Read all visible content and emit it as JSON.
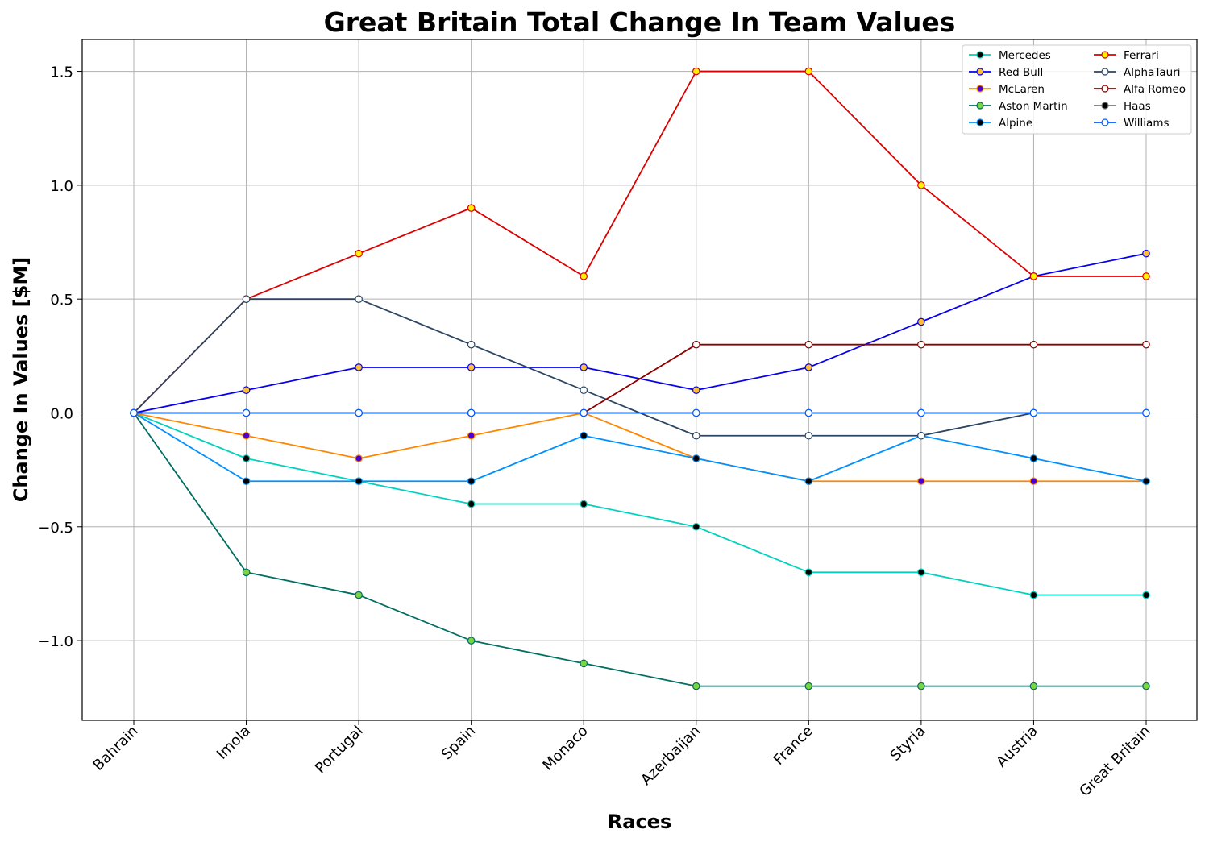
{
  "chart_data": {
    "type": "line",
    "title": "Great Britain Total Change In Team Values",
    "xlabel": "Races",
    "ylabel": "Change In Values [$M]",
    "categories": [
      "Bahrain",
      "Imola",
      "Portugal",
      "Spain",
      "Monaco",
      "Azerbaijan",
      "France",
      "Styria",
      "Austria",
      "Great Britain"
    ],
    "ylim": [
      -1.35,
      1.64
    ],
    "yticks": [
      -1.0,
      -0.5,
      0.0,
      0.5,
      1.0,
      1.5
    ],
    "ytick_labels": [
      "−1.0",
      "−0.5",
      "0.0",
      "0.5",
      "1.0",
      "1.5"
    ],
    "grid": true,
    "legend_position": "top-right",
    "legend_columns": 2,
    "series": [
      {
        "name": "Mercedes",
        "color": "#00D2BE",
        "marker_face": "#000000",
        "values": [
          0,
          -0.2,
          -0.3,
          -0.4,
          -0.4,
          -0.5,
          -0.7,
          -0.7,
          -0.8,
          -0.8
        ]
      },
      {
        "name": "Red Bull",
        "color": "#0600EF",
        "marker_face": "#FFBF2F",
        "values": [
          0,
          0.1,
          0.2,
          0.2,
          0.2,
          0.1,
          0.2,
          0.4,
          0.6,
          0.7
        ]
      },
      {
        "name": "McLaren",
        "color": "#FF8700",
        "marker_face": "#4B00D2",
        "values": [
          0,
          -0.1,
          -0.2,
          -0.1,
          0,
          -0.2,
          -0.3,
          -0.3,
          -0.3,
          -0.3
        ]
      },
      {
        "name": "Aston Martin",
        "color": "#006F62",
        "marker_face": "#7BD53F",
        "values": [
          0,
          -0.7,
          -0.8,
          -1.0,
          -1.1,
          -1.2,
          -1.2,
          -1.2,
          -1.2,
          -1.2
        ]
      },
      {
        "name": "Alpine",
        "color": "#0090FF",
        "marker_face": "#000000",
        "values": [
          0,
          -0.3,
          -0.3,
          -0.3,
          -0.1,
          -0.2,
          -0.3,
          -0.1,
          -0.2,
          -0.3
        ]
      },
      {
        "name": "Ferrari",
        "color": "#DC0000",
        "marker_face": "#FFF200",
        "values": [
          0,
          0.5,
          0.7,
          0.9,
          0.6,
          1.5,
          1.5,
          1.0,
          0.6,
          0.6
        ]
      },
      {
        "name": "AlphaTauri",
        "color": "#2B4562",
        "marker_face": "#FFFFFF",
        "values": [
          0,
          0.5,
          0.5,
          0.3,
          0.1,
          -0.1,
          -0.1,
          -0.1,
          0,
          0
        ]
      },
      {
        "name": "Alfa Romeo",
        "color": "#900000",
        "marker_face": "#FFFFFF",
        "values": [
          0,
          0,
          0,
          0,
          0,
          0.3,
          0.3,
          0.3,
          0.3,
          0.3
        ]
      },
      {
        "name": "Haas",
        "color": "#787878",
        "marker_face": "#000000",
        "values": [
          0,
          0,
          0,
          0,
          0,
          0,
          0,
          0,
          0,
          0
        ]
      },
      {
        "name": "Williams",
        "color": "#005AFF",
        "marker_face": "#FFFFFF",
        "values": [
          0,
          0,
          0,
          0,
          0,
          0,
          0,
          0,
          0,
          0
        ]
      }
    ]
  }
}
